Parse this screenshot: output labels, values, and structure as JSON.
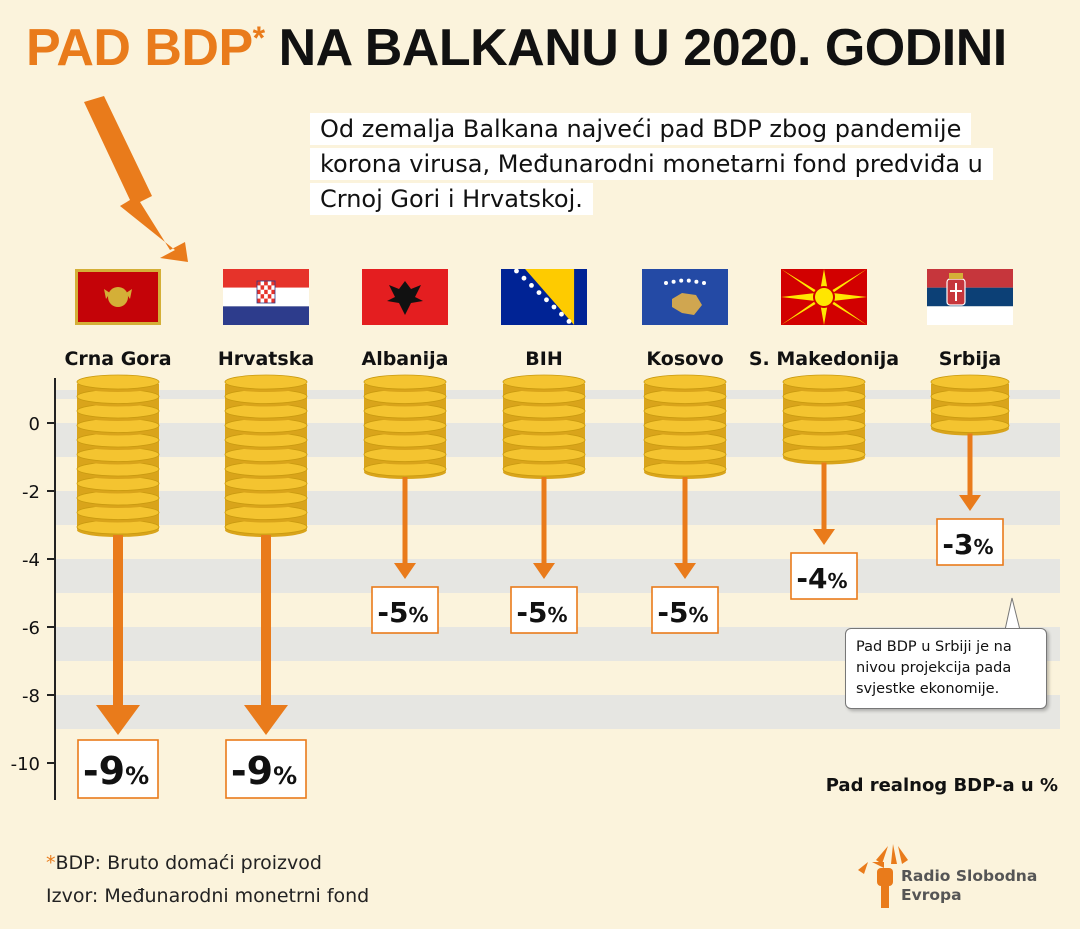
{
  "title": {
    "accent": "PAD BDP",
    "star": "*",
    "rest": "NA BALKANU U 2020. GODINI"
  },
  "intro": "Od zemalja Balkana najveći pad BDP zbog pandemije korona virusa, Međunarodni monetarni fond predviđa u Crnoj Gori i Hrvatskoj.",
  "note": "Pad BDP u Srbiji je na nivou projekcija pada svjestke ekonomije.",
  "footnotes": {
    "asterisk": "*",
    "bdp": "BDP: Bruto domaći proizvod",
    "source": "Izvor: Međunarodni monetrni fond"
  },
  "logo": {
    "line1": "Radio Slobodna",
    "line2": "Evropa"
  },
  "colors": {
    "accent": "#e97b1b",
    "coin": "#f4c430",
    "coin_dark": "#d9a41b",
    "stripe": "#e6e6e2",
    "background": "#fbf3dc"
  },
  "chart_data": {
    "type": "bar",
    "categories": [
      "Crna Gora",
      "Hrvatska",
      "Albanija",
      "BIH",
      "Kosovo",
      "S. Makedonija",
      "Srbija"
    ],
    "flags": [
      "montenegro-flag-icon",
      "croatia-flag-icon",
      "albania-flag-icon",
      "bosnia-flag-icon",
      "kosovo-flag-icon",
      "north-macedonia-flag-icon",
      "serbia-flag-icon"
    ],
    "values": [
      -9,
      -9,
      -5,
      -5,
      -5,
      -4,
      -3
    ],
    "value_labels": [
      "-9",
      "-9",
      "-5",
      "-5",
      "-5",
      "-4",
      "-3"
    ],
    "unit": "%",
    "yticks": [
      "0",
      "-2",
      "-4",
      "-6",
      "-8",
      "-10"
    ],
    "ylim": [
      -11,
      1
    ],
    "xlabel": "Pad realnog BDP-a u %",
    "grid": true
  }
}
